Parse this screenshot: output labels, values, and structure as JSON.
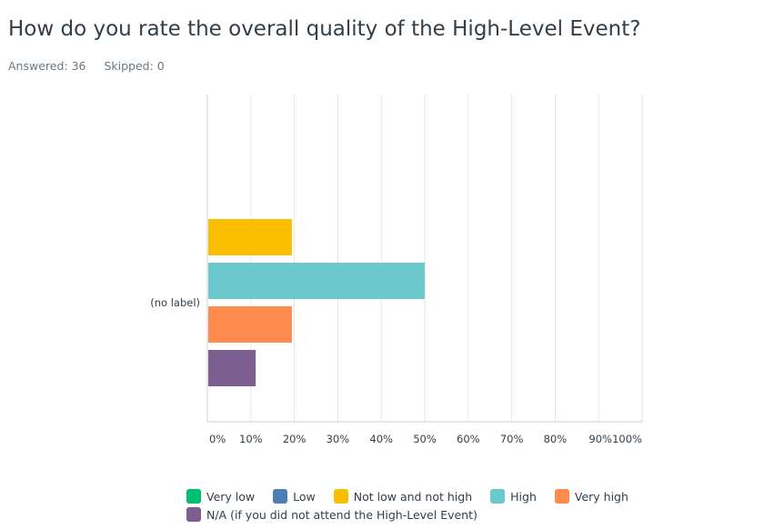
{
  "header": {
    "question": "How do you rate the overall quality of the High-Level Event?",
    "answered": "Answered: 36",
    "skipped": "Skipped: 0"
  },
  "chart_data": {
    "type": "bar",
    "orientation": "horizontal",
    "categories": [
      "(no label)"
    ],
    "series": [
      {
        "name": "Very low",
        "values": [
          0
        ],
        "color": "#00bf6f"
      },
      {
        "name": "Low",
        "values": [
          0
        ],
        "color": "#507cb6"
      },
      {
        "name": "Not low and not high",
        "values": [
          19.44
        ],
        "color": "#f9be00"
      },
      {
        "name": "High",
        "values": [
          50.0
        ],
        "color": "#6bc8cd"
      },
      {
        "name": "Very high",
        "values": [
          19.44
        ],
        "color": "#ff8b4f"
      },
      {
        "name": "N/A (if you did not attend the High-Level Event)",
        "values": [
          11.11
        ],
        "color": "#7d5e90"
      }
    ],
    "xlim": [
      0,
      100
    ],
    "x_ticks": [
      "0%",
      "10%",
      "20%",
      "30%",
      "40%",
      "50%",
      "60%",
      "70%",
      "80%",
      "90%",
      "100%"
    ],
    "grid": true,
    "legend_position": "bottom"
  }
}
